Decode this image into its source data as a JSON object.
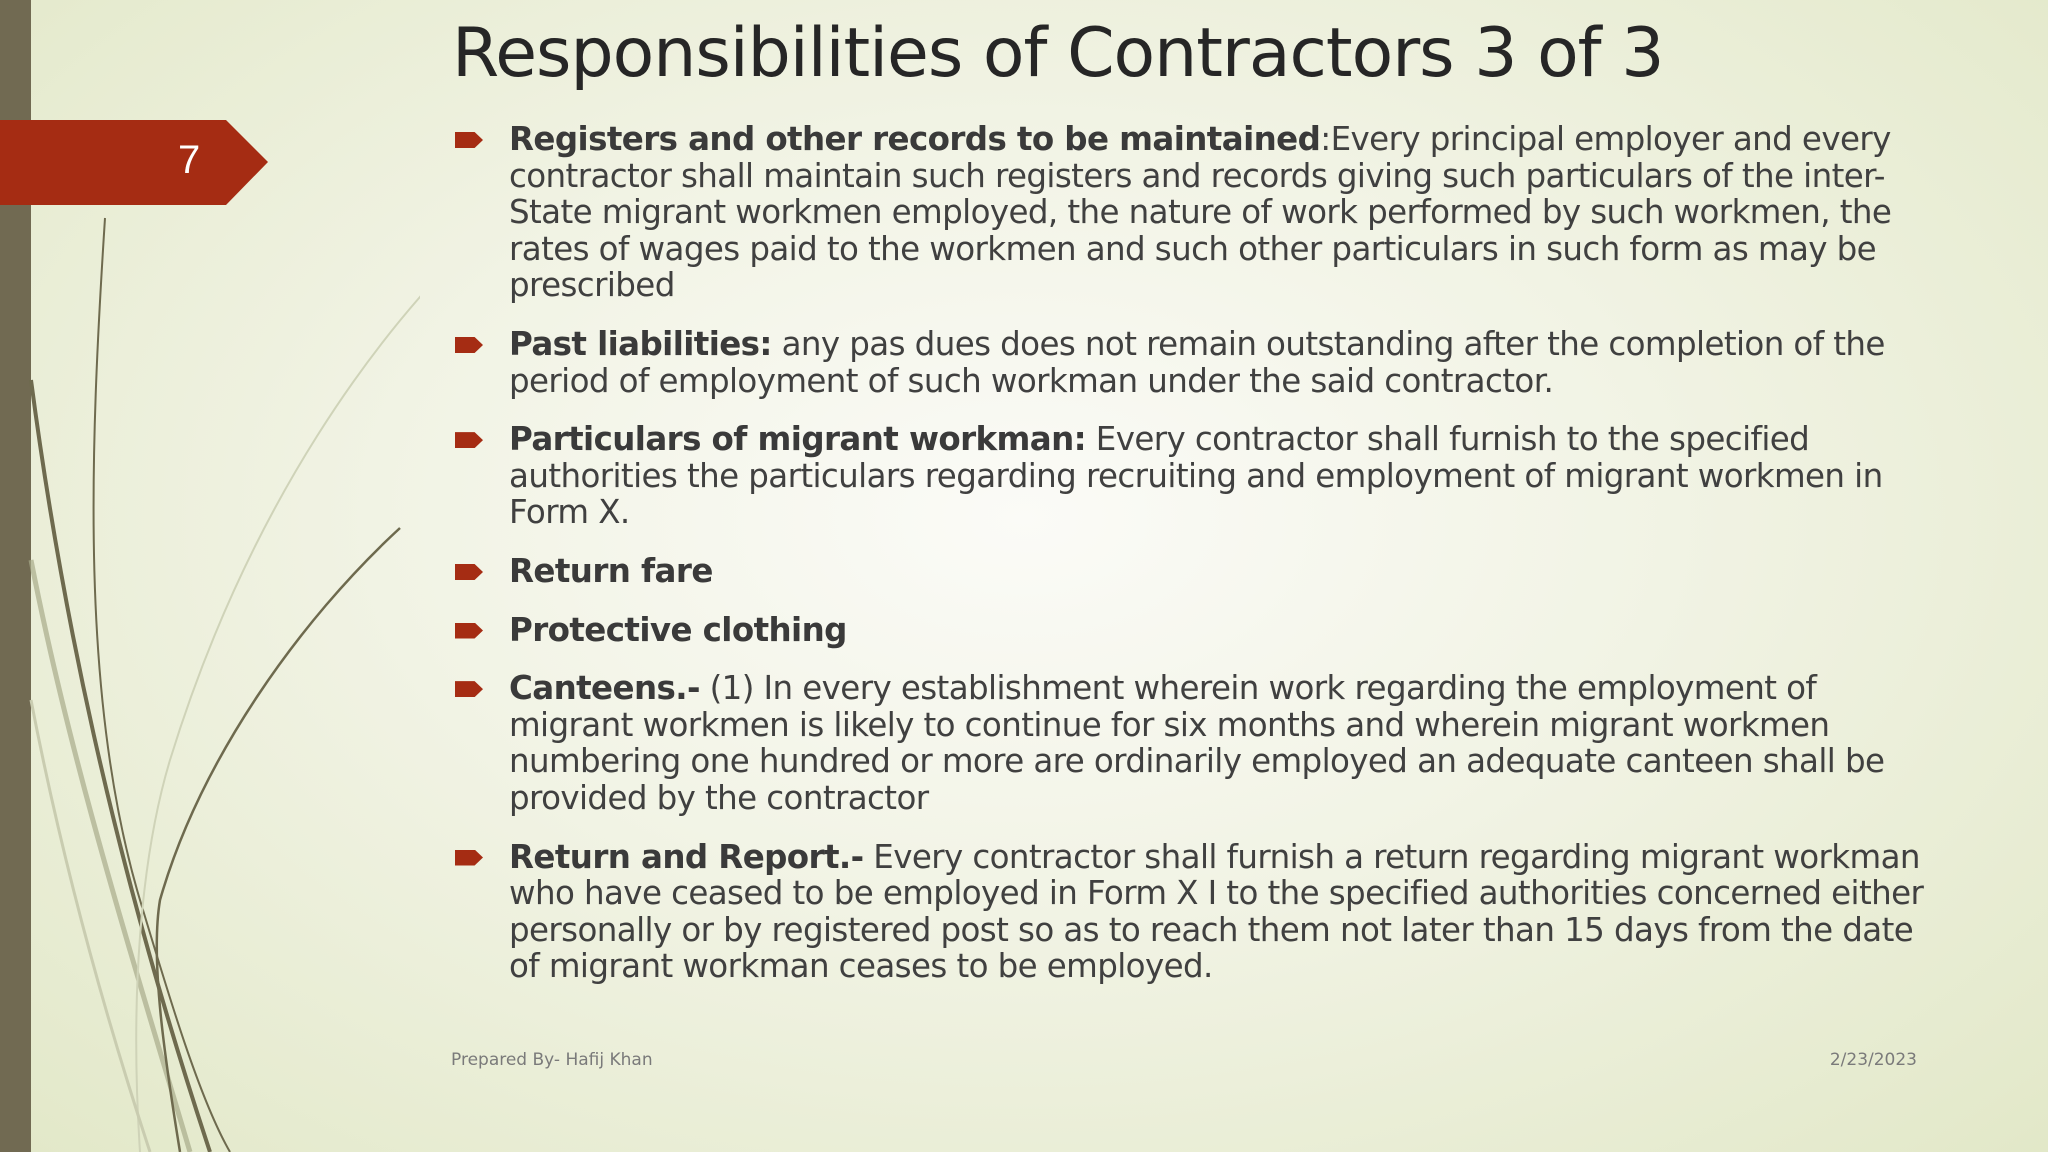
{
  "slide": {
    "number": "7",
    "title": "Responsibilities of Contractors 3 of 3",
    "bullets": [
      {
        "label": "Registers and other records to be maintained",
        "text": ":Every principal employer and every contractor shall maintain such registers and records giving such particulars of the inter-State migrant workmen employed, the nature of work performed by such workmen, the rates of wages paid to the workmen and such other particulars in such form as may be prescribed"
      },
      {
        "label": "Past liabilities:",
        "text": " any pas dues does not remain outstanding after the completion of the period of employment of such workman under the said contractor."
      },
      {
        "label": "Particulars of migrant workman:",
        "text": " Every contractor shall furnish to the specified authorities the particulars regarding recruiting and employment of migrant workmen in Form X."
      },
      {
        "label": "Return fare",
        "text": ""
      },
      {
        "label": "Protective clothing",
        "text": ""
      },
      {
        "label": "Canteens.-",
        "text": " (1) In every establishment wherein work regarding the employment of migrant workmen is likely to continue for six months and wherein migrant workmen numbering one hundred or more are ordinarily employed an adequate canteen shall be provided by the contractor"
      },
      {
        "label": "Return and Report.-",
        "text": " Every contractor shall furnish a return regarding migrant workman who have ceased to be employed in Form X I to the specified authorities concerned either personally or by registered post so as to reach them not later than 15 days from the date of migrant workman ceases to be employed."
      }
    ],
    "footer_left": "Prepared By- Hafij Khan",
    "footer_right": "2/23/2023"
  },
  "colors": {
    "accent": "#a52c13",
    "sidebar": "#716a52"
  }
}
